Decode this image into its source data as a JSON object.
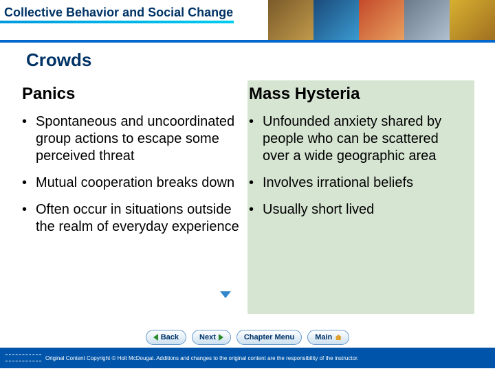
{
  "header": {
    "title": "Collective Behavior and Social Change",
    "underline_gradient_from": "#0099dd",
    "underline_gradient_to": "#00ccee",
    "border_color": "#0066cc"
  },
  "section": {
    "title": "Crowds"
  },
  "left": {
    "heading": "Panics",
    "bullets": [
      "Spontaneous and uncoordinated group actions to escape some perceived threat",
      "Mutual cooperation breaks down",
      "Often occur in situations outside the realm of everyday experience"
    ]
  },
  "right": {
    "heading": "Mass Hysteria",
    "background_color": "#d6e4d2",
    "bullets": [
      "Unfounded anxiety shared by people who can be scattered over a wide geographic area",
      "Involves irrational beliefs",
      "Usually short lived"
    ]
  },
  "nav": {
    "back": "< Back",
    "back_label": "Back",
    "next": "Next >",
    "next_label": "Next",
    "chapter": "Chapter Menu",
    "main": "Main"
  },
  "footer": {
    "text": "Original Content Copyright © Holt McDougal. Additions and changes to the original content are the responsibility of the instructor.",
    "background_color": "#0055aa"
  },
  "colors": {
    "title_text": "#003366",
    "body_text": "#000000",
    "nav_border": "#6699cc",
    "nav_accent_green": "#2a8a2a",
    "nav_accent_home": "#e0a030",
    "arrow_marker": "#3388cc"
  },
  "typography": {
    "header_title_pt": 18,
    "section_title_pt": 26,
    "column_heading_pt": 24,
    "body_pt": 20,
    "nav_pt": 11,
    "footer_pt": 8
  }
}
